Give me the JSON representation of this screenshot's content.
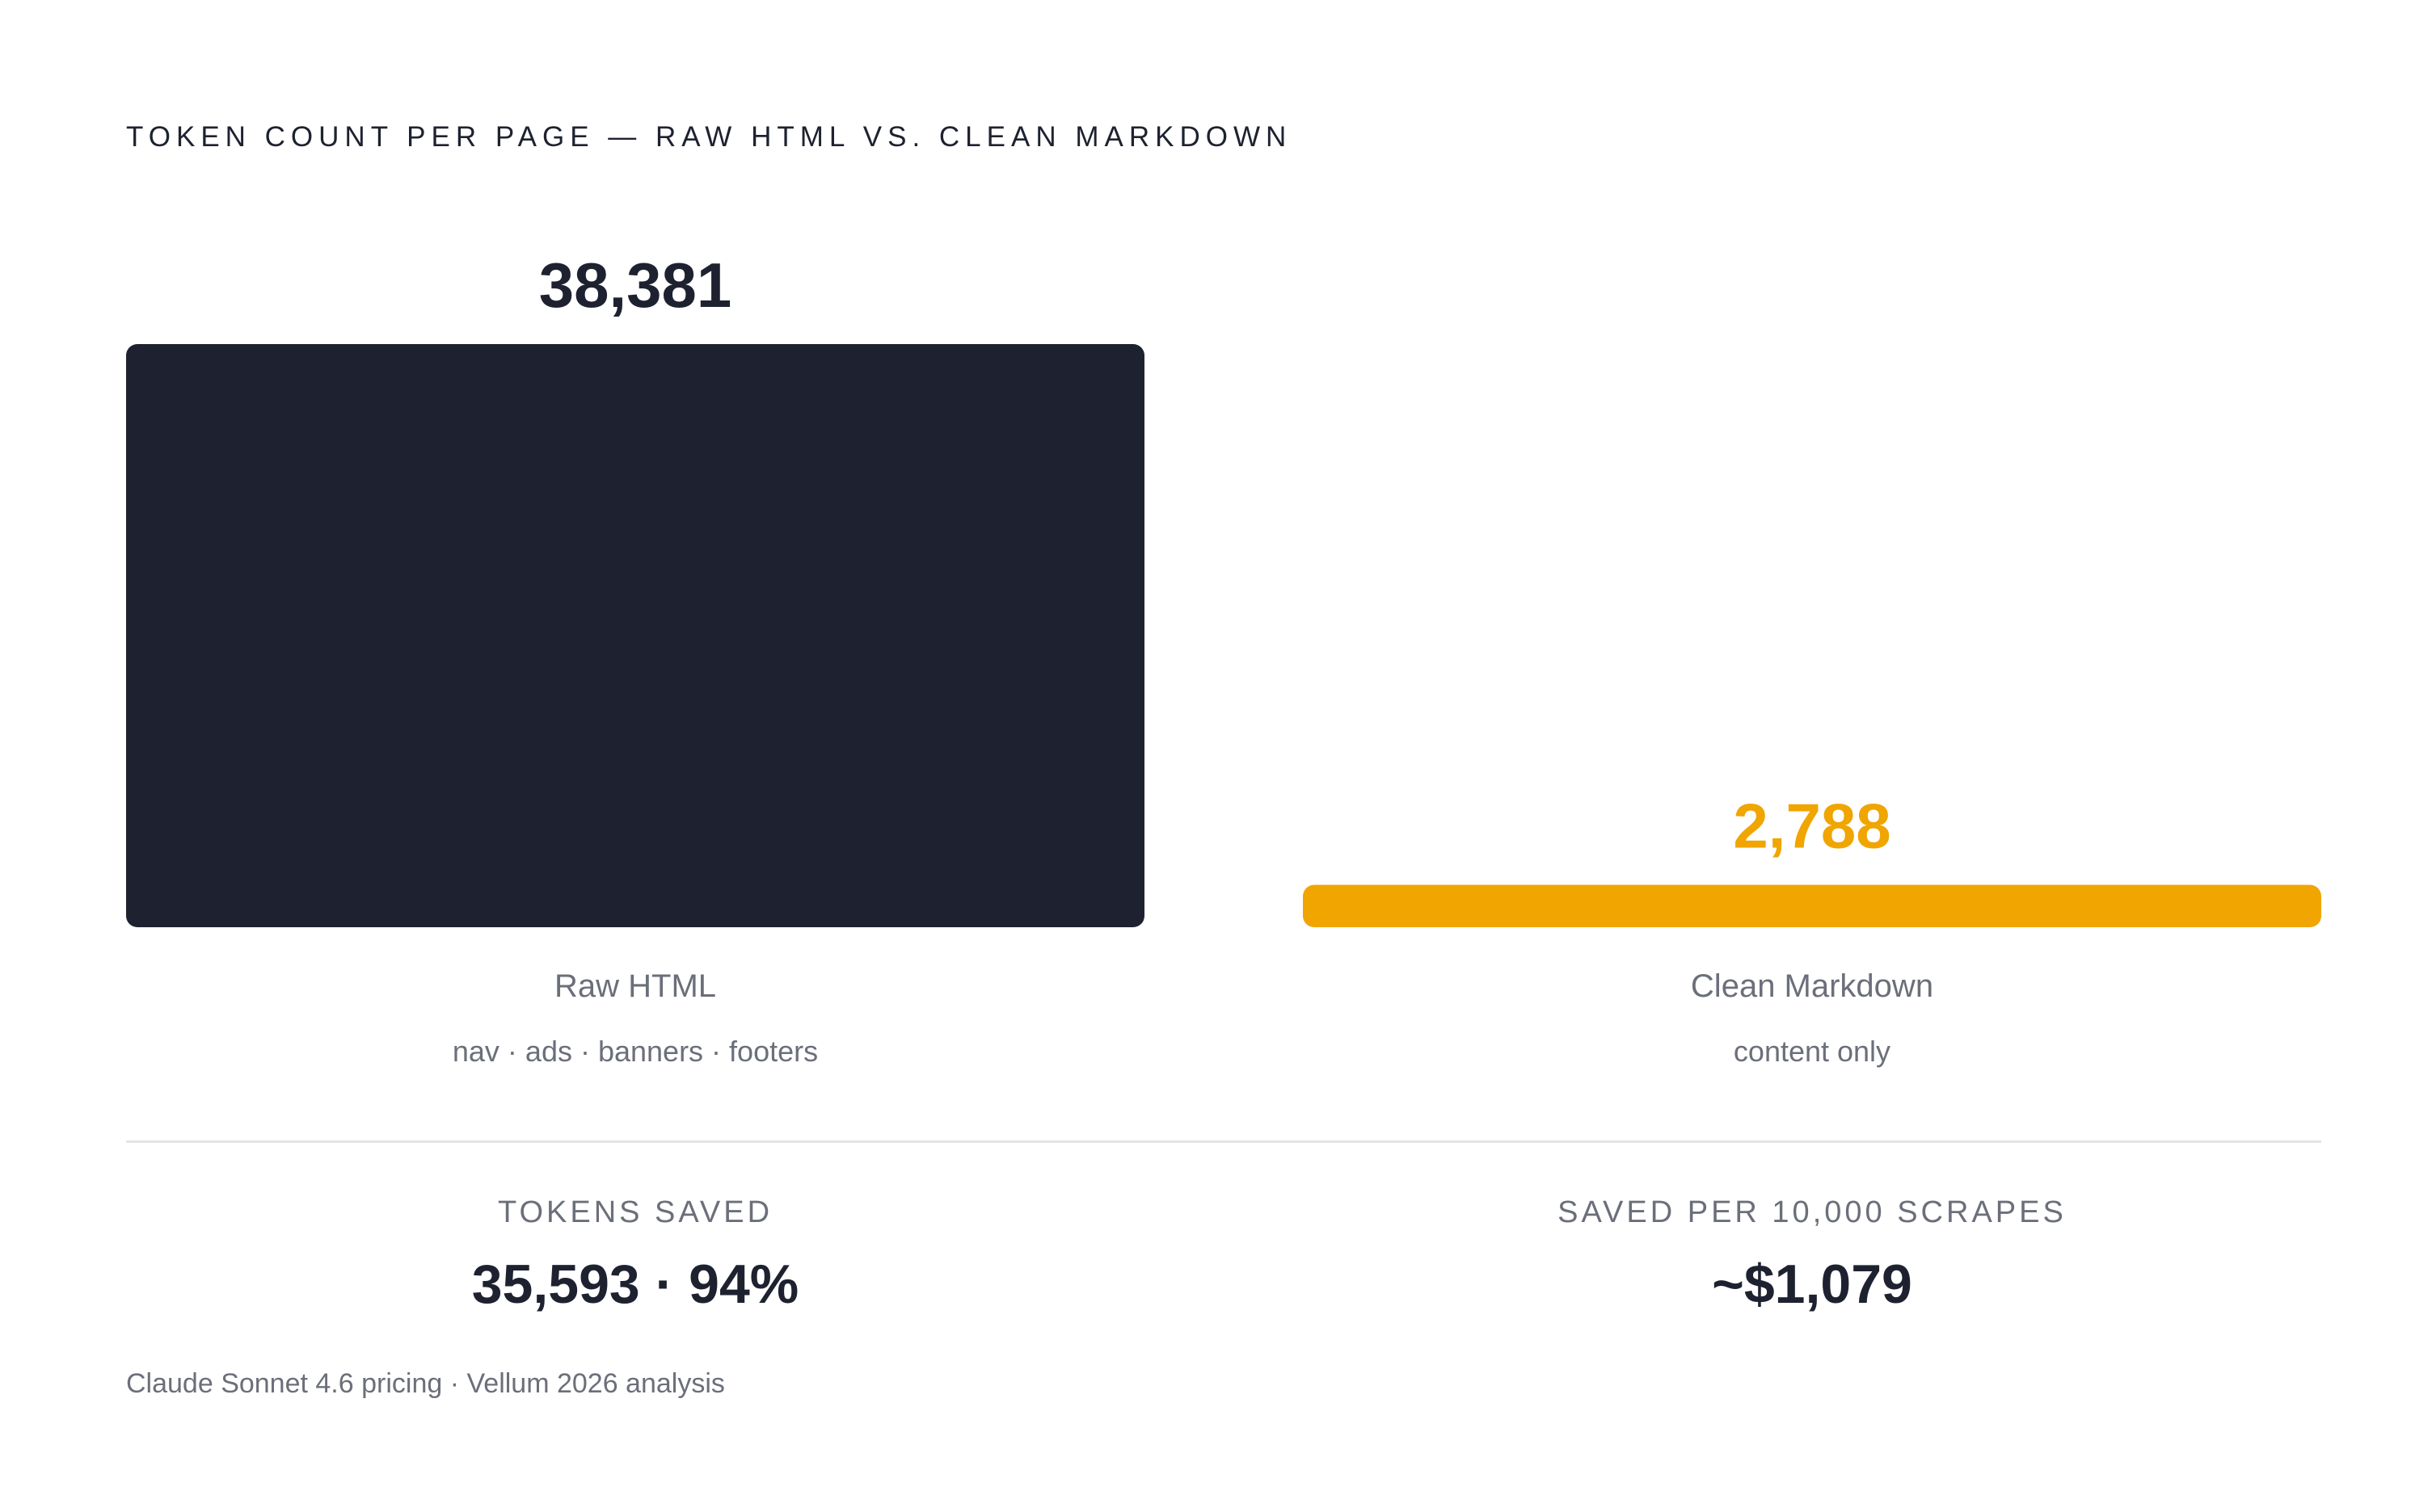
{
  "chart_data": {
    "type": "bar",
    "title": "Token count per page — raw HTML vs. clean Markdown",
    "categories": [
      "Raw HTML",
      "Clean Markdown"
    ],
    "subtitles": [
      "nav · ads · banners · footers",
      "content only"
    ],
    "values": [
      38381,
      2788
    ],
    "value_labels": [
      "38,381",
      "2,788"
    ],
    "colors": [
      "#1e2230",
      "#f0a500"
    ],
    "xlabel": "",
    "ylabel": "",
    "ylim": [
      0,
      38381
    ],
    "grid": false,
    "legend": "none"
  },
  "stats": {
    "tokens_saved_label": "Tokens saved",
    "tokens_saved_value": "35,593 · 94%",
    "saved_per_label": "Saved per 10,000 scrapes",
    "saved_per_value": "~$1,079"
  },
  "footnote": "Claude Sonnet 4.6 pricing · Vellum 2026 analysis"
}
